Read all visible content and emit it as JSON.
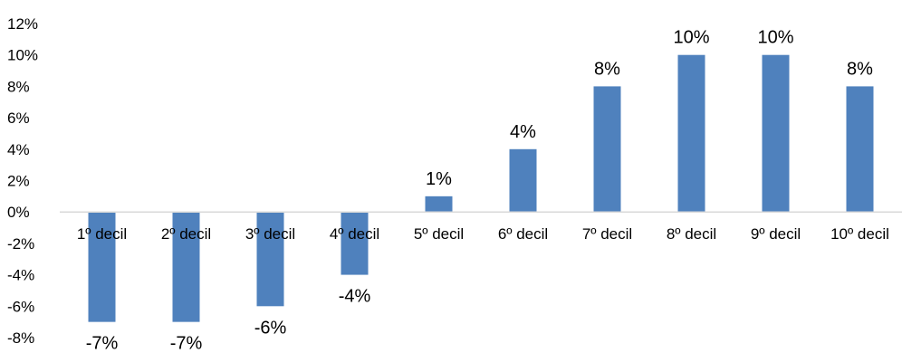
{
  "chart_data": {
    "type": "bar",
    "title": "",
    "xlabel": "",
    "ylabel": "",
    "categories": [
      "1º decil",
      "2º decil",
      "3º decil",
      "4º decil",
      "5º decil",
      "6º decil",
      "7º decil",
      "8º decil",
      "9º decil",
      "10º decil"
    ],
    "values": [
      -7,
      -7,
      -6,
      -4,
      1,
      4,
      8,
      10,
      10,
      8
    ],
    "data_labels": [
      "-7%",
      "-7%",
      "-6%",
      "-4%",
      "1%",
      "4%",
      "8%",
      "10%",
      "10%",
      "8%"
    ],
    "ylim": [
      -8,
      12
    ],
    "y_ticks": [
      12,
      10,
      8,
      6,
      4,
      2,
      0,
      -2,
      -4,
      -6,
      -8
    ],
    "y_tick_labels": [
      "12%",
      "10%",
      "8%",
      "6%",
      "4%",
      "2%",
      "0%",
      "-2%",
      "-4%",
      "-6%",
      "-8%"
    ],
    "y_tick_format": "percent",
    "grid": false,
    "legend": "none",
    "colors": {
      "bar": "#4F81BD",
      "axis": "#D9D9D9",
      "text": "#000000"
    }
  }
}
